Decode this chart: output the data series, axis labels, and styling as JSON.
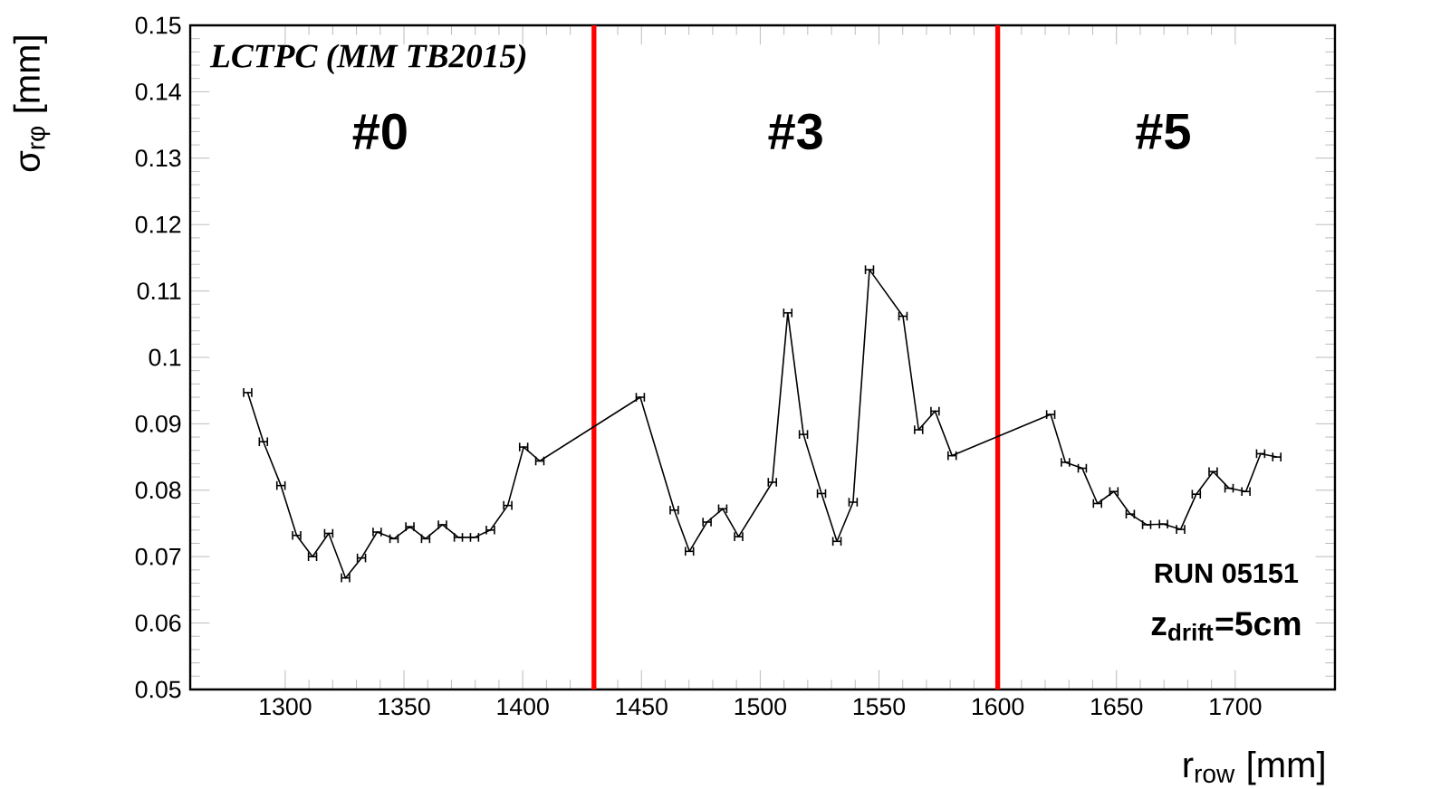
{
  "chart_data": {
    "type": "line",
    "xlabel": "r$_{row}$ [mm]",
    "ylabel": "σ$_{rφ}$ [mm]",
    "x": [
      1284.2,
      1290.8,
      1298.2,
      1304.8,
      1311.5,
      1318.3,
      1325.4,
      1332.1,
      1338.7,
      1345.8,
      1352.5,
      1359.1,
      1366.2,
      1372.9,
      1379.7,
      1386.4,
      1393.7,
      1400.4,
      1407.2,
      1449.5,
      1463.8,
      1470.2,
      1477.6,
      1484.2,
      1490.9,
      1505.1,
      1511.6,
      1518.2,
      1525.8,
      1532.3,
      1539.1,
      1546.0,
      1560.1,
      1566.7,
      1573.6,
      1580.8,
      1622.3,
      1628.5,
      1635.6,
      1642.0,
      1648.9,
      1655.8,
      1662.7,
      1669.8,
      1677.0,
      1683.6,
      1690.7,
      1697.4,
      1704.5,
      1710.7,
      1717.5
    ],
    "series": [
      {
        "color": "#000000",
        "values": [
          0.0947,
          0.0873,
          0.0807,
          0.0732,
          0.07,
          0.0735,
          0.0668,
          0.0698,
          0.0737,
          0.0727,
          0.0745,
          0.0727,
          0.0748,
          0.0729,
          0.0729,
          0.074,
          0.0777,
          0.0865,
          0.0844,
          0.094,
          0.077,
          0.0708,
          0.0752,
          0.0772,
          0.073,
          0.0812,
          0.1067,
          0.0884,
          0.0795,
          0.0723,
          0.0782,
          0.1132,
          0.1062,
          0.0891,
          0.0919,
          0.0852,
          0.0914,
          0.0842,
          0.0833,
          0.078,
          0.0798,
          0.0764,
          0.0748,
          0.0749,
          0.0741,
          0.0794,
          0.0828,
          0.0803,
          0.0798,
          0.0855,
          0.085
        ],
        "xerrors": [
          1.7,
          1.7,
          1.7,
          1.7,
          1.7,
          1.7,
          1.7,
          1.7,
          1.7,
          1.7,
          1.7,
          1.7,
          1.7,
          1.7,
          1.7,
          1.7,
          1.7,
          1.7,
          1.7,
          1.7,
          1.7,
          1.7,
          1.7,
          1.7,
          1.7,
          1.7,
          1.7,
          1.7,
          1.7,
          1.7,
          1.7,
          1.7,
          1.7,
          1.7,
          1.7,
          1.7,
          1.7,
          1.7,
          1.7,
          1.7,
          1.7,
          1.7,
          1.7,
          1.7,
          1.7,
          1.7,
          1.7,
          1.7,
          1.7,
          1.7,
          1.7
        ]
      }
    ],
    "xlim": [
      1260,
      1742
    ],
    "ylim": [
      0.05,
      0.15
    ],
    "xticks": [
      1300,
      1350,
      1400,
      1450,
      1500,
      1550,
      1600,
      1650,
      1700
    ],
    "yticks": [
      0.05,
      0.06,
      0.07,
      0.08,
      0.09,
      0.1,
      0.11,
      0.12,
      0.13,
      0.14,
      0.15
    ],
    "ref_lines": [
      {
        "axis": "x",
        "value": 1430,
        "color": "#ff0000"
      },
      {
        "axis": "x",
        "value": 1600,
        "color": "#ff0000"
      }
    ],
    "annotations": [
      "*LCTPC (MM TB2015)*",
      "#0",
      "#3",
      "#5",
      "RUN 05151",
      "z$_{drift}$=5cm"
    ],
    "grid": false,
    "marker": "none",
    "line_style": "solid"
  }
}
